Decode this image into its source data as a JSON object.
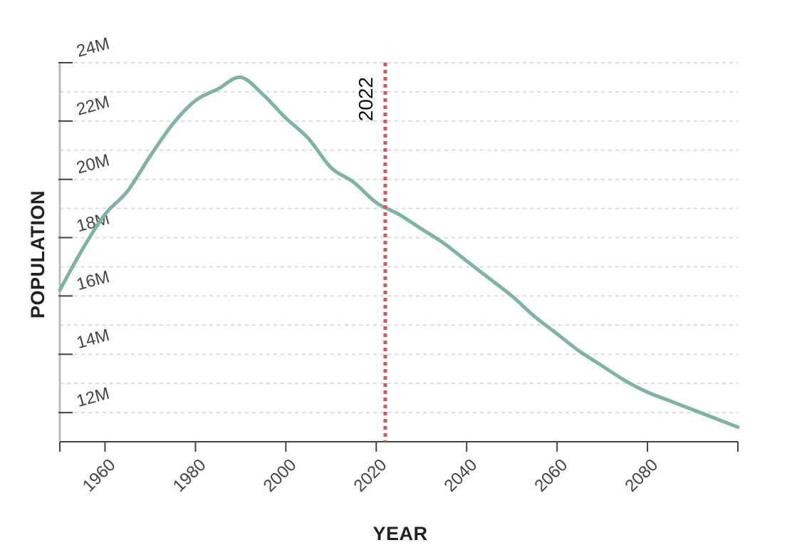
{
  "chart_data": {
    "type": "line",
    "xlabel": "YEAR",
    "ylabel": "POPULATION",
    "xlim": [
      1950,
      2100
    ],
    "ylim": [
      11000000,
      24000000
    ],
    "x_ticks": [
      1960,
      1980,
      2000,
      2020,
      2040,
      2060,
      2080
    ],
    "x_tick_labels": [
      "1960",
      "1980",
      "2000",
      "2020",
      "2040",
      "2060",
      "2080"
    ],
    "y_ticks": [
      12000000,
      14000000,
      16000000,
      18000000,
      20000000,
      22000000,
      24000000
    ],
    "y_tick_labels": [
      "12M",
      "14M",
      "16M",
      "18M",
      "20M",
      "22M",
      "24M"
    ],
    "grid": "horizontal dashed, every 1M",
    "series": [
      {
        "color": "#7fb3a5",
        "x": [
          1950,
          1955,
          1960,
          1965,
          1970,
          1975,
          1980,
          1985,
          1990,
          1995,
          2000,
          2005,
          2010,
          2015,
          2020,
          2025,
          2030,
          2035,
          2040,
          2045,
          2050,
          2055,
          2060,
          2065,
          2070,
          2075,
          2080,
          2085,
          2090,
          2095,
          2100
        ],
        "y": [
          16200000,
          17600000,
          18800000,
          19600000,
          20800000,
          21900000,
          22700000,
          23100000,
          23500000,
          22900000,
          22100000,
          21400000,
          20400000,
          19900000,
          19200000,
          18800000,
          18300000,
          17800000,
          17200000,
          16600000,
          16000000,
          15300000,
          14700000,
          14100000,
          13600000,
          13100000,
          12700000,
          12400000,
          12100000,
          11800000,
          11500000
        ]
      }
    ],
    "annotations": [
      {
        "type": "vline",
        "x": 2022,
        "label": "2022",
        "color": "#d05a57"
      }
    ]
  }
}
